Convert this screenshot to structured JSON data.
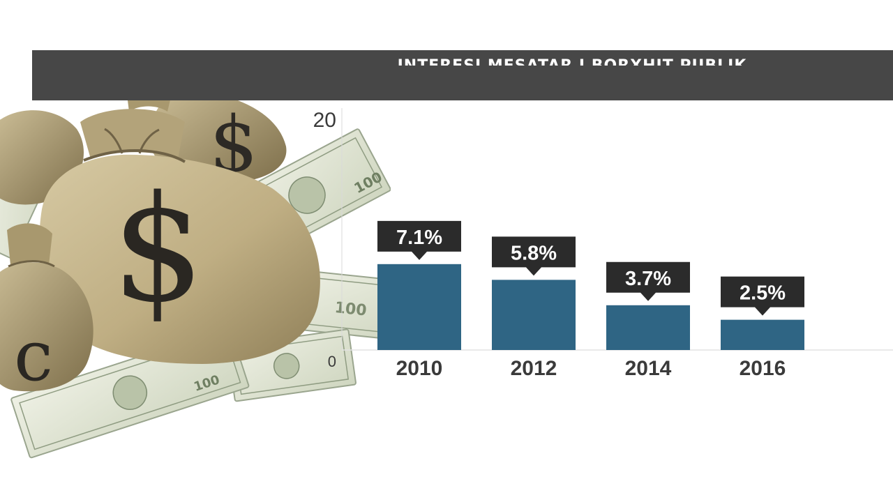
{
  "chart_data": {
    "type": "bar",
    "title": "INTERESI MESATAR I BORXHIT PUBLIK",
    "categories": [
      "2010",
      "2012",
      "2014",
      "2016"
    ],
    "values": [
      7.1,
      5.8,
      3.7,
      2.5
    ],
    "value_labels": [
      "7.1%",
      "5.8%",
      "3.7%",
      "2.5%"
    ],
    "ylim": [
      0,
      20
    ],
    "yticks": [
      "0",
      "20"
    ],
    "xlabel": "",
    "ylabel": "",
    "grid": false,
    "bar_color": "#2f6584",
    "label_box_color": "#2b2b2b",
    "label_text_color": "#ffffff",
    "tick_color": "#3a3a3a"
  },
  "decoration": {
    "illustration": "money-bags-and-dollar-bills",
    "title_bar_color": "#474747"
  }
}
